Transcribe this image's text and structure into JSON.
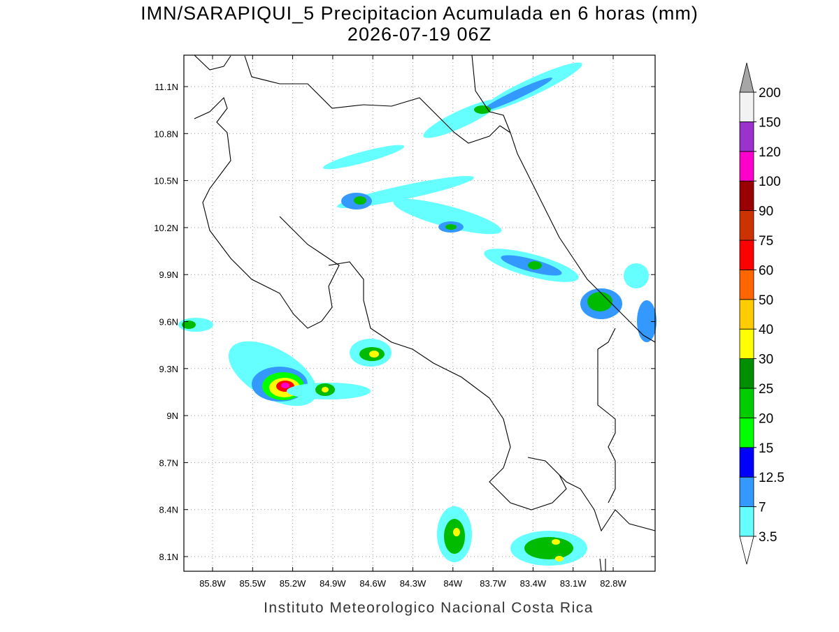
{
  "title": "IMN/SARAPIQUI_5 Precipitacion Acumulada en 6 horas (mm)",
  "subtitle": "2026-07-19 06Z",
  "lat_labels": [
    "11.1N",
    "10.8N",
    "10.5N",
    "10.2N",
    "9.9N",
    "9.6N",
    "9.3N",
    "9N",
    "8.7N",
    "8.4N",
    "8.1N"
  ],
  "lon_labels": [
    "85.8W",
    "85.5W",
    "85.2W",
    "84.9W",
    "84.6W",
    "84.3W",
    "84W",
    "83.7W",
    "83.4W",
    "83.1W",
    "82.8W"
  ],
  "colorbar": {
    "levels": [
      3.5,
      7,
      12.5,
      15,
      20,
      25,
      30,
      40,
      50,
      60,
      75,
      90,
      100,
      120,
      150,
      200
    ],
    "colors": [
      "#66ffff",
      "#3399ff",
      "#0000ff",
      "#00ff00",
      "#00cc00",
      "#008f00",
      "#ffff00",
      "#ffcc00",
      "#ff6600",
      "#ff0000",
      "#cc3300",
      "#990000",
      "#ff00cc",
      "#9933cc",
      "#f2f2f2"
    ],
    "under_color": "#ffffff",
    "over_color": "#a6a6a6"
  },
  "footer": "Instituto Meteorologico Nacional Costa Rica"
}
